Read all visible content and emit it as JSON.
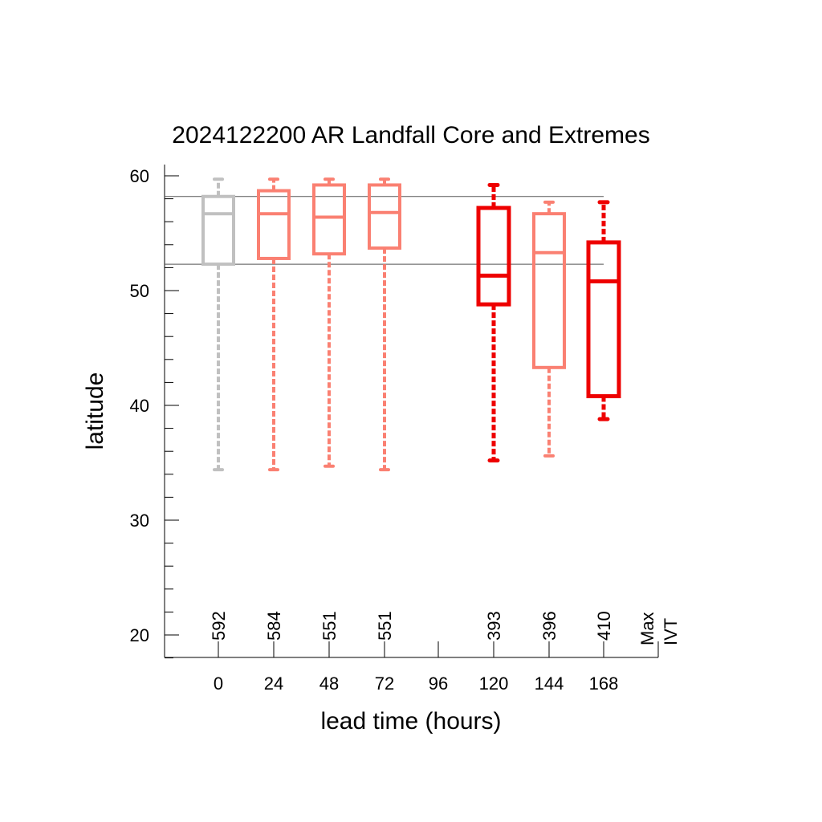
{
  "chart_data": {
    "type": "boxplot",
    "title": "2024122200 AR Landfall Core and Extremes",
    "xlabel": "lead time (hours)",
    "ylabel": "latitude",
    "ylim": [
      18,
      61
    ],
    "yticks": [
      20,
      30,
      40,
      50,
      60
    ],
    "y_minor_step": 2,
    "categories": [
      "0",
      "24",
      "48",
      "72",
      "96",
      "120",
      "144",
      "168"
    ],
    "legend_text": [
      "Max",
      "IVT"
    ],
    "reference_lines": [
      58.2,
      52.3
    ],
    "boxes": [
      {
        "category": "0",
        "count": "592",
        "whisker_low": 34.4,
        "q1": 52.3,
        "median": 56.7,
        "q3": 58.2,
        "whisker_high": 59.7,
        "color": "#c0c0c0",
        "bold": false
      },
      {
        "category": "24",
        "count": "584",
        "whisker_low": 34.4,
        "q1": 52.8,
        "median": 56.7,
        "q3": 58.7,
        "whisker_high": 59.7,
        "color": "#fa8072",
        "bold": false
      },
      {
        "category": "48",
        "count": "551",
        "whisker_low": 34.7,
        "q1": 53.2,
        "median": 56.4,
        "q3": 59.2,
        "whisker_high": 59.7,
        "color": "#fa8072",
        "bold": false
      },
      {
        "category": "72",
        "count": "551",
        "whisker_low": 34.4,
        "q1": 53.7,
        "median": 56.8,
        "q3": 59.2,
        "whisker_high": 59.7,
        "color": "#fa8072",
        "bold": false
      },
      {
        "category": "120",
        "count": "393",
        "whisker_low": 35.2,
        "q1": 48.8,
        "median": 51.3,
        "q3": 57.2,
        "whisker_high": 59.2,
        "color": "#ee0000",
        "bold": true
      },
      {
        "category": "144",
        "count": "396",
        "whisker_low": 35.6,
        "q1": 43.3,
        "median": 53.3,
        "q3": 56.7,
        "whisker_high": 57.7,
        "color": "#fa8072",
        "bold": false
      },
      {
        "category": "168",
        "count": "410",
        "whisker_low": 38.8,
        "q1": 40.8,
        "median": 50.8,
        "q3": 54.2,
        "whisker_high": 57.7,
        "color": "#ee0000",
        "bold": true
      }
    ]
  }
}
